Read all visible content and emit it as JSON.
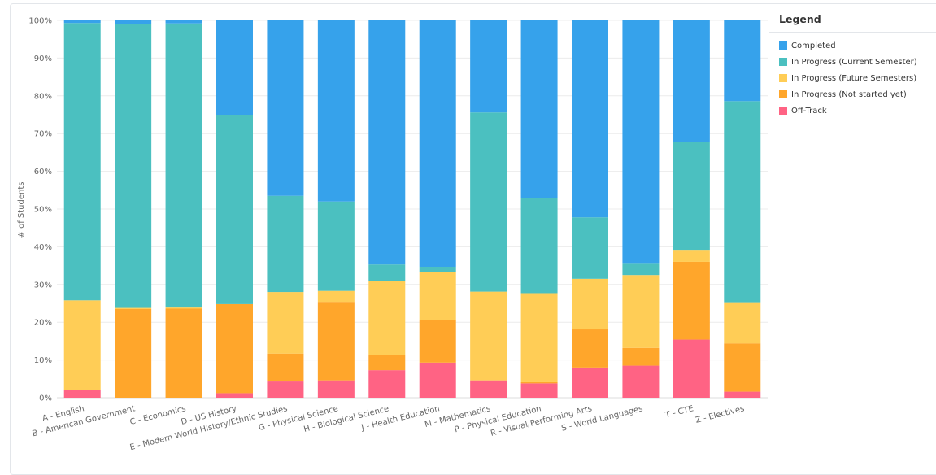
{
  "chart_data": {
    "type": "bar",
    "stacked": true,
    "percent": true,
    "ylabel": "# of Students",
    "ylim": [
      0,
      100
    ],
    "yticks": [
      "0%",
      "10%",
      "20%",
      "30%",
      "40%",
      "50%",
      "60%",
      "70%",
      "80%",
      "90%",
      "100%"
    ],
    "grid": true,
    "legend_position": "right",
    "legend_title": "Legend",
    "categories": [
      "A - English",
      "B - American Government",
      "C - Economics",
      "D - US History",
      "E - Modern World History/Ethnic Studies",
      "G - Physical Science",
      "H - Biological Science",
      "J - Health Education",
      "M - Mathematics",
      "P - Physical Education",
      "R - Visual/Performing Arts",
      "S - World Languages",
      "T - CTE",
      "Z - Electives"
    ],
    "series": [
      {
        "name": "Off-Track",
        "color": "#ff6384",
        "values": [
          2.1,
          0,
          0,
          1.2,
          4.3,
          4.6,
          7.3,
          9.3,
          4.6,
          3.8,
          8.0,
          8.5,
          15.4,
          1.6
        ]
      },
      {
        "name": "In Progress (Not started yet)",
        "color": "#ffa62b",
        "values": [
          0,
          23.5,
          23.6,
          23.6,
          7.4,
          20.8,
          4.0,
          11.2,
          0,
          0.3,
          10.1,
          4.7,
          20.6,
          12.8
        ]
      },
      {
        "name": "In Progress (Future Semesters)",
        "color": "#ffcd56",
        "values": [
          23.7,
          0.3,
          0.3,
          0,
          16.3,
          2.9,
          19.7,
          12.9,
          23.5,
          23.6,
          13.4,
          19.3,
          3.2,
          10.9
        ]
      },
      {
        "name": "In Progress (Current Semester)",
        "color": "#4bc0c0",
        "values": [
          73.5,
          75.3,
          75.3,
          50.2,
          25.5,
          23.7,
          4.3,
          1.3,
          47.5,
          25.2,
          16.3,
          3.2,
          28.6,
          53.3
        ]
      },
      {
        "name": "Completed",
        "color": "#36a2eb",
        "values": [
          0.7,
          0.9,
          0.8,
          25.0,
          46.5,
          48.0,
          64.7,
          65.3,
          24.4,
          47.1,
          52.2,
          64.3,
          32.2,
          21.4
        ]
      }
    ]
  }
}
